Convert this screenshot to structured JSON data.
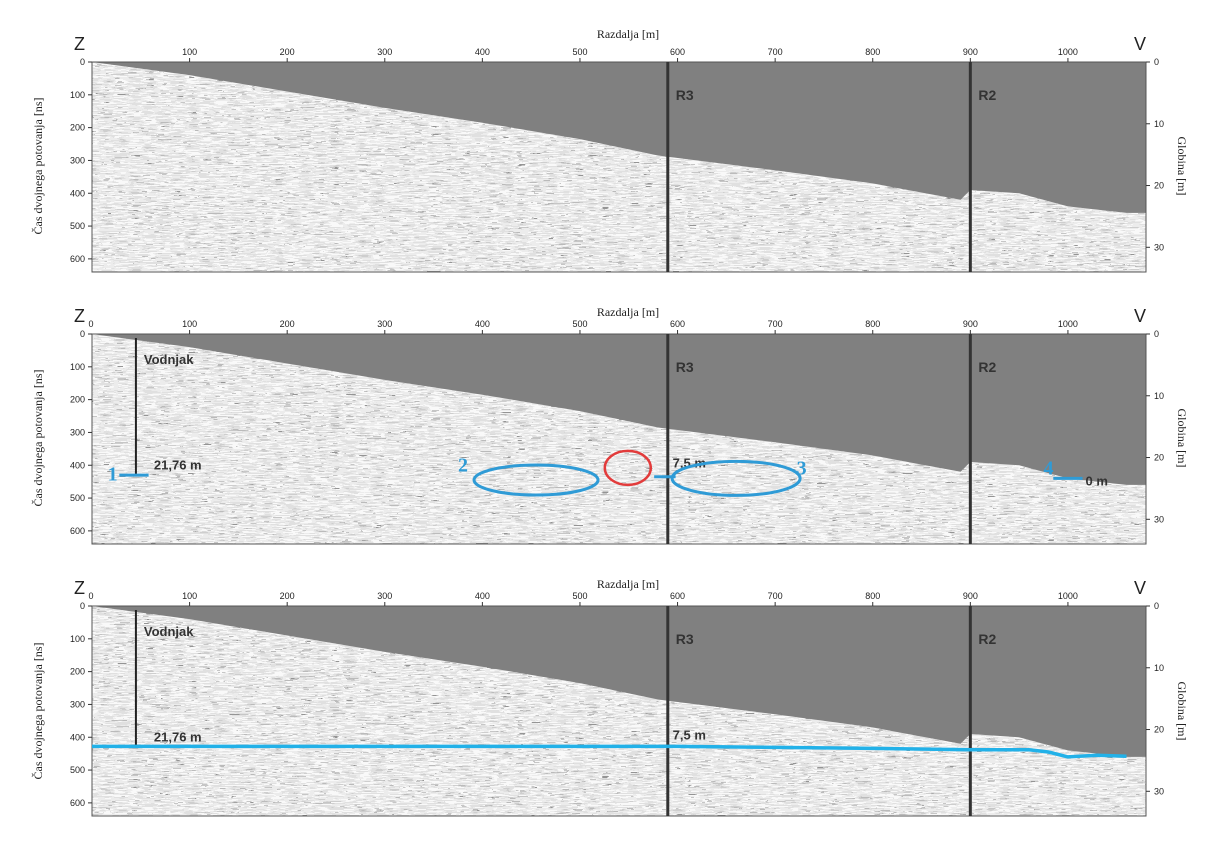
{
  "x_axis_title": "Razdalja [m]",
  "y_left_title": "Čas dvojnega potovanja [ns]",
  "y_right_title": "Globina [m]",
  "west_label": "Z",
  "east_label": "V",
  "x_ticks": [
    100,
    200,
    300,
    400,
    500,
    600,
    700,
    800,
    900,
    1000
  ],
  "x_tick_labels": [
    "100",
    "200",
    "300",
    "400",
    "500",
    "600",
    "700",
    "800",
    "900",
    "1000"
  ],
  "y_left_ticks": [
    0,
    100,
    200,
    300,
    400,
    500,
    600
  ],
  "y_left_tick_labels": [
    "0",
    "100",
    "200",
    "300",
    "400",
    "500",
    "600"
  ],
  "y_right_ticks": [
    0,
    10,
    20,
    30
  ],
  "y_right_tick_labels": [
    "0",
    "10",
    "20",
    "30"
  ],
  "x_range": [
    0,
    1080
  ],
  "time_range_ns": [
    0,
    640
  ],
  "depth_range_m": [
    0,
    34
  ],
  "surface_profile": [
    [
      0,
      0
    ],
    [
      100,
      40
    ],
    [
      200,
      90
    ],
    [
      300,
      140
    ],
    [
      400,
      185
    ],
    [
      500,
      235
    ],
    [
      580,
      285
    ],
    [
      700,
      330
    ],
    [
      800,
      370
    ],
    [
      890,
      420
    ],
    [
      900,
      390
    ],
    [
      950,
      400
    ],
    [
      1000,
      440
    ],
    [
      1060,
      460
    ]
  ],
  "markers": [
    {
      "x": 590,
      "label": "R3"
    },
    {
      "x": 900,
      "label": "R2"
    }
  ],
  "well": {
    "x": 45,
    "label": "Vodnjak"
  },
  "annotations": {
    "p1": "1",
    "p2": "2",
    "p3": "3",
    "p4": "4",
    "depth_well": "21,76 m",
    "depth_mid": "7,5 m",
    "depth_end": "0 m"
  },
  "water_table_ns": [
    [
      0,
      428
    ],
    [
      200,
      428
    ],
    [
      400,
      428
    ],
    [
      600,
      428
    ],
    [
      800,
      434
    ],
    [
      900,
      438
    ],
    [
      960,
      438
    ],
    [
      980,
      445
    ],
    [
      1000,
      460
    ],
    [
      1030,
      455
    ],
    [
      1060,
      458
    ]
  ],
  "colors": {
    "radargram_bg": "#808080",
    "marker_line": "#333333",
    "annotation_blue": "#2f9bd6",
    "water_table": "#22b1e8",
    "highlight_red": "#e23b3b"
  }
}
